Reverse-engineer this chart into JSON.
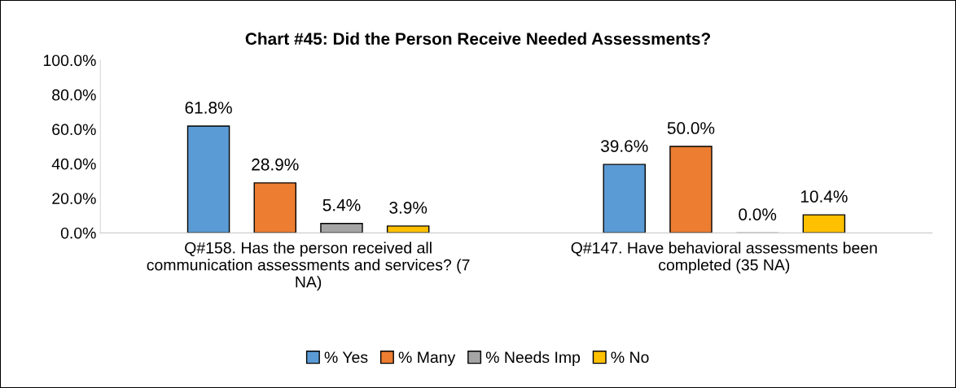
{
  "chart_data": {
    "type": "bar",
    "title": "Chart #45: Did the Person Receive Needed Assessments?",
    "categories": [
      "Q#158. Has the person received all\ncommunication assessments and services? (7\nNA)",
      "Q#147. Have behavioral assessments been\ncompleted (35 NA)"
    ],
    "series": [
      {
        "name": "% Yes",
        "color": "#5b9bd5",
        "values": [
          61.8,
          39.6
        ],
        "value_labels": [
          "61.8%",
          "39.6%"
        ]
      },
      {
        "name": "% Many",
        "color": "#ed7d31",
        "values": [
          28.9,
          50.0
        ],
        "value_labels": [
          "28.9%",
          "50.0%"
        ]
      },
      {
        "name": "% Needs Imp",
        "color": "#a5a5a5",
        "values": [
          5.4,
          0.0
        ],
        "value_labels": [
          "5.4%",
          "0.0%"
        ]
      },
      {
        "name": "% No",
        "color": "#ffc000",
        "values": [
          3.9,
          10.4
        ],
        "value_labels": [
          "3.9%",
          "10.4%"
        ]
      }
    ],
    "ylim": [
      0,
      100
    ],
    "yticks": [
      {
        "value": 0,
        "label": "0.0%"
      },
      {
        "value": 20,
        "label": "20.0%"
      },
      {
        "value": 40,
        "label": "40.0%"
      },
      {
        "value": 60,
        "label": "60.0%"
      },
      {
        "value": 80,
        "label": "80.0%"
      },
      {
        "value": 100,
        "label": "100.0%"
      }
    ],
    "grid": false,
    "legend": "bottom"
  }
}
